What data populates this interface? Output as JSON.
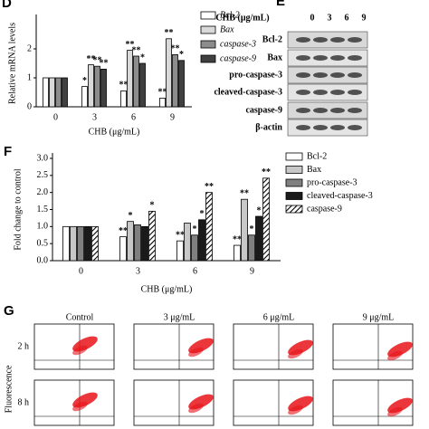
{
  "chart_data": [
    {
      "type": "bar",
      "panel": "D",
      "ylabel": "Relative mRNA levels",
      "xlabel": "CHB (μg/mL)",
      "categories": [
        "0",
        "3",
        "6",
        "9"
      ],
      "ylim": [
        0,
        3
      ],
      "yticks": [
        0,
        1,
        2
      ],
      "legend_italic": true,
      "series": [
        {
          "name": "Bcl-2",
          "color": "#ffffff",
          "values": [
            1,
            0.7,
            0.55,
            0.3
          ],
          "sig": [
            null,
            "*",
            "**",
            "**"
          ]
        },
        {
          "name": "Bax",
          "color": "#d9d9d9",
          "values": [
            1,
            1.45,
            1.95,
            2.35
          ],
          "sig": [
            null,
            "**",
            "**",
            "**"
          ]
        },
        {
          "name": "caspase-3",
          "color": "#8c8c8c",
          "values": [
            1,
            1.4,
            1.75,
            1.8
          ],
          "sig": [
            null,
            "**",
            "**",
            "**"
          ]
        },
        {
          "name": "caspase-9",
          "color": "#404040",
          "values": [
            1,
            1.3,
            1.5,
            1.6
          ],
          "sig": [
            null,
            "**",
            "*",
            "*"
          ]
        }
      ]
    },
    {
      "type": "bar",
      "panel": "F",
      "ylabel": "Fold change to control",
      "xlabel": "CHB (μg/mL)",
      "categories": [
        "0",
        "3",
        "6",
        "9"
      ],
      "ylim": [
        0,
        3
      ],
      "yticks": [
        {
          "value": 0,
          "label": "0.0"
        },
        {
          "value": 0.5,
          "label": "0.5"
        },
        {
          "value": 1,
          "label": "1.0"
        },
        {
          "value": 1.5,
          "label": "1.5"
        },
        {
          "value": 2,
          "label": "2.0"
        },
        {
          "value": 2.5,
          "label": "2.5"
        },
        {
          "value": 3,
          "label": "3.0"
        }
      ],
      "series": [
        {
          "name": "Bcl-2",
          "color": "#ffffff",
          "values": [
            1,
            0.7,
            0.58,
            0.45
          ],
          "sig": [
            null,
            "**",
            "**",
            "**"
          ]
        },
        {
          "name": "Bax",
          "color": "#c8c8c8",
          "values": [
            1,
            1.15,
            1.1,
            1.8
          ],
          "sig": [
            null,
            "*",
            null,
            "**"
          ]
        },
        {
          "name": "pro-caspase-3",
          "color": "#808080",
          "values": [
            1,
            1.05,
            0.75,
            0.75
          ],
          "sig": [
            null,
            null,
            "*",
            "*"
          ]
        },
        {
          "name": "cleaved-caspase-3",
          "color": "#1a1a1a",
          "values": [
            1,
            1,
            1.2,
            1.3
          ],
          "sig": [
            null,
            null,
            "*",
            "*"
          ]
        },
        {
          "name": "caspase-9",
          "color": "#000000",
          "hatch": true,
          "values": [
            1,
            1.45,
            2,
            2.42
          ],
          "sig": [
            null,
            "*",
            "**",
            "**"
          ]
        }
      ]
    }
  ],
  "blot": {
    "panel": "E",
    "header": "CHB (μg/mL)",
    "lanes": [
      "0",
      "3",
      "6",
      "9"
    ],
    "rows": [
      "Bcl-2",
      "Bax",
      "pro-caspase-3",
      "cleaved-caspase-3",
      "caspase-9",
      "β-actin"
    ]
  },
  "flow": {
    "panel": "G",
    "ylabel": "Fluorescence",
    "columns": [
      "Control",
      "3 μg/mL",
      "6  μg/mL",
      "9 μg/mL"
    ],
    "rows": [
      "2 h",
      "8 h"
    ]
  }
}
